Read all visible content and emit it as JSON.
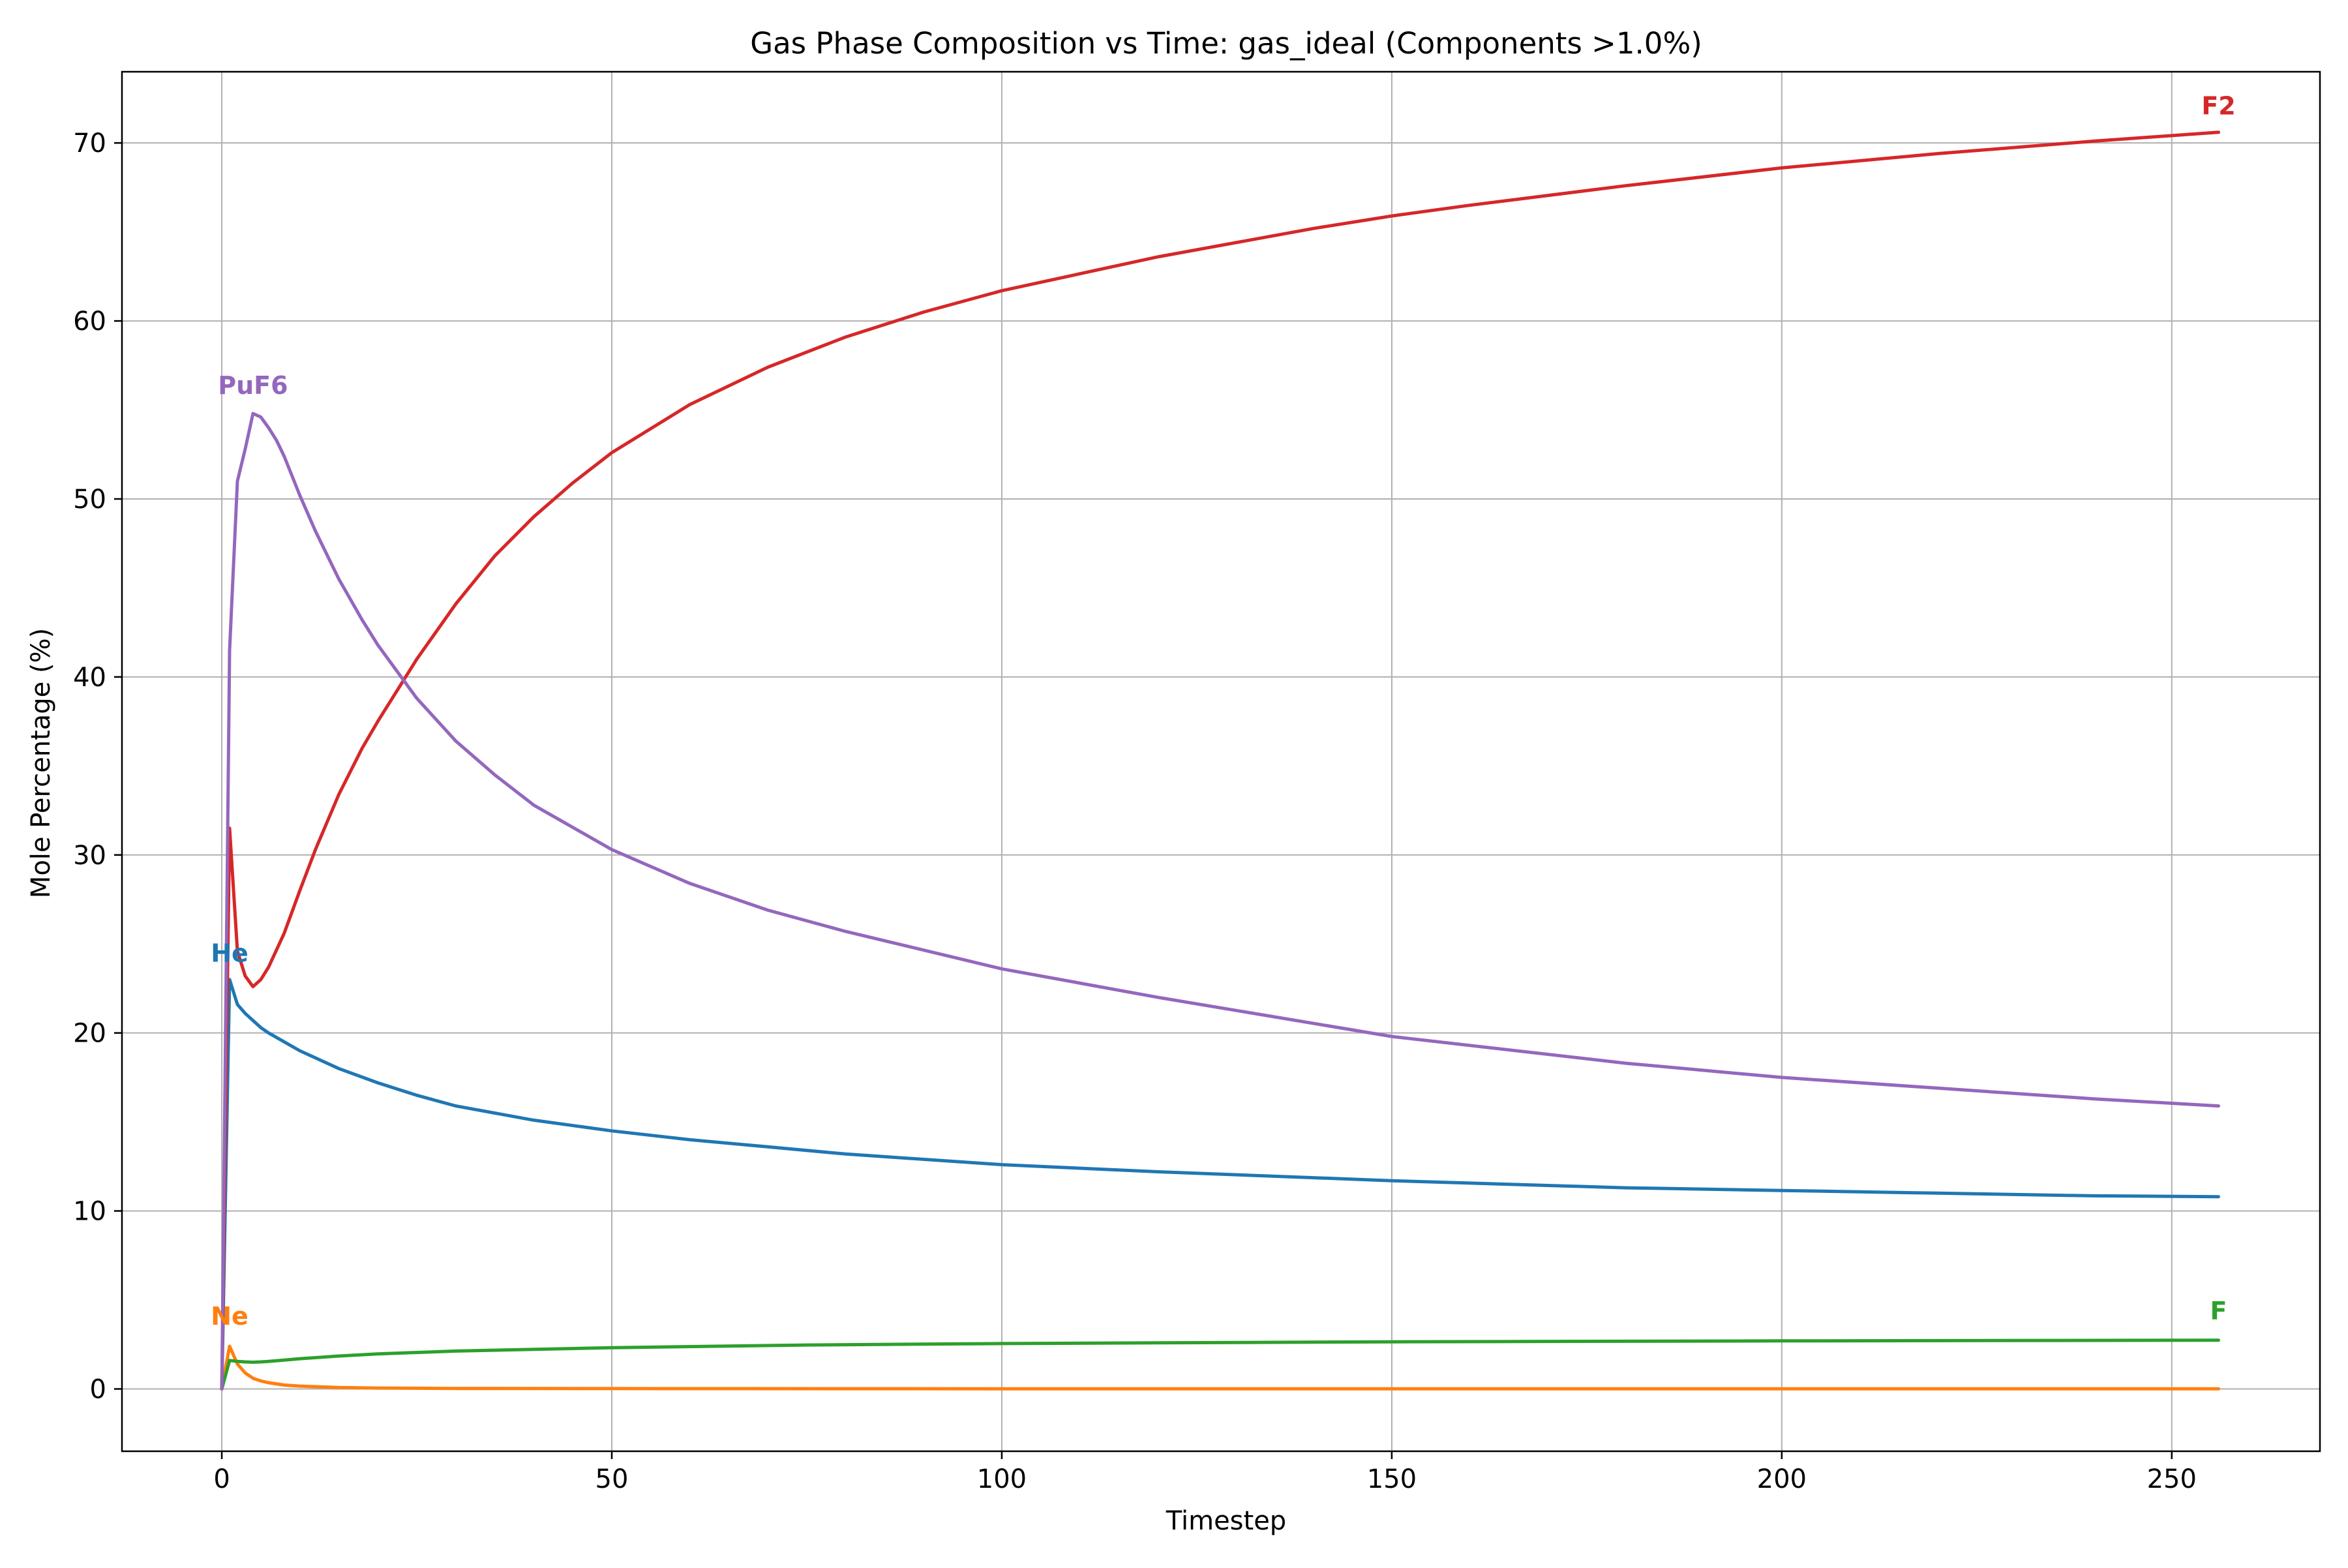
{
  "chart_data": {
    "type": "line",
    "title": "Gas Phase Composition vs Time: gas_ideal (Components >1.0%)",
    "xlabel": "Timestep",
    "ylabel": "Mole Percentage (%)",
    "xlim": [
      -12.8,
      269
    ],
    "ylim": [
      -3.5,
      74
    ],
    "xticks": [
      0,
      50,
      100,
      150,
      200,
      250
    ],
    "yticks": [
      0,
      10,
      20,
      30,
      40,
      50,
      60,
      70
    ],
    "grid": true,
    "legend": "none",
    "series": [
      {
        "name": "He",
        "color": "#1f77b4",
        "label_at": [
          1,
          24
        ],
        "x": [
          0,
          1,
          2,
          3,
          4,
          5,
          6,
          8,
          10,
          12,
          15,
          20,
          25,
          30,
          40,
          50,
          60,
          70,
          80,
          100,
          120,
          150,
          180,
          200,
          220,
          240,
          256
        ],
        "y": [
          0,
          23.0,
          21.6,
          21.1,
          20.7,
          20.3,
          20.0,
          19.5,
          19.0,
          18.6,
          18.0,
          17.2,
          16.5,
          15.9,
          15.1,
          14.5,
          14.0,
          13.6,
          13.2,
          12.6,
          12.2,
          11.7,
          11.3,
          11.15,
          11.0,
          10.85,
          10.8
        ]
      },
      {
        "name": "Ne",
        "color": "#ff7f0e",
        "label_at": [
          1,
          3.6
        ],
        "x": [
          0,
          1,
          2,
          3,
          4,
          5,
          6,
          8,
          10,
          15,
          20,
          30,
          50,
          100,
          150,
          200,
          256
        ],
        "y": [
          0,
          2.4,
          1.4,
          0.9,
          0.6,
          0.45,
          0.35,
          0.22,
          0.16,
          0.08,
          0.05,
          0.03,
          0.02,
          0.01,
          0.01,
          0.01,
          0.01
        ]
      },
      {
        "name": "F",
        "color": "#2ca02c",
        "label_at": [
          256,
          3.9
        ],
        "x": [
          0,
          1,
          2,
          3,
          4,
          5,
          6,
          8,
          10,
          15,
          20,
          30,
          50,
          75,
          100,
          150,
          200,
          256
        ],
        "y": [
          0,
          1.6,
          1.55,
          1.52,
          1.5,
          1.52,
          1.55,
          1.62,
          1.7,
          1.85,
          1.97,
          2.13,
          2.32,
          2.47,
          2.55,
          2.65,
          2.7,
          2.74
        ]
      },
      {
        "name": "F2",
        "color": "#d62728",
        "label_at": [
          256,
          71.6
        ],
        "x": [
          0,
          1,
          2,
          3,
          4,
          5,
          6,
          8,
          10,
          12,
          15,
          18,
          20,
          25,
          30,
          35,
          40,
          45,
          50,
          60,
          70,
          80,
          90,
          100,
          120,
          140,
          150,
          160,
          180,
          200,
          220,
          240,
          256
        ],
        "y": [
          0,
          31.5,
          24.6,
          23.2,
          22.6,
          23.0,
          23.7,
          25.6,
          28.0,
          30.3,
          33.4,
          36.0,
          37.5,
          41.0,
          44.1,
          46.8,
          49.0,
          50.9,
          52.6,
          55.3,
          57.4,
          59.1,
          60.5,
          61.7,
          63.6,
          65.2,
          65.9,
          66.5,
          67.6,
          68.6,
          69.4,
          70.1,
          70.6
        ]
      },
      {
        "name": "PuF6",
        "color": "#9467bd",
        "label_at": [
          4,
          55.9
        ],
        "x": [
          0,
          1,
          2,
          3,
          4,
          5,
          6,
          7,
          8,
          10,
          12,
          15,
          18,
          20,
          25,
          30,
          35,
          40,
          50,
          60,
          70,
          80,
          100,
          120,
          150,
          180,
          200,
          220,
          240,
          256
        ],
        "y": [
          0,
          41.5,
          51.0,
          52.8,
          54.8,
          54.6,
          54.0,
          53.3,
          52.4,
          50.2,
          48.2,
          45.5,
          43.2,
          41.8,
          38.8,
          36.4,
          34.5,
          32.8,
          30.3,
          28.4,
          26.9,
          25.7,
          23.6,
          22.0,
          19.8,
          18.3,
          17.5,
          16.9,
          16.3,
          15.9
        ]
      }
    ]
  }
}
